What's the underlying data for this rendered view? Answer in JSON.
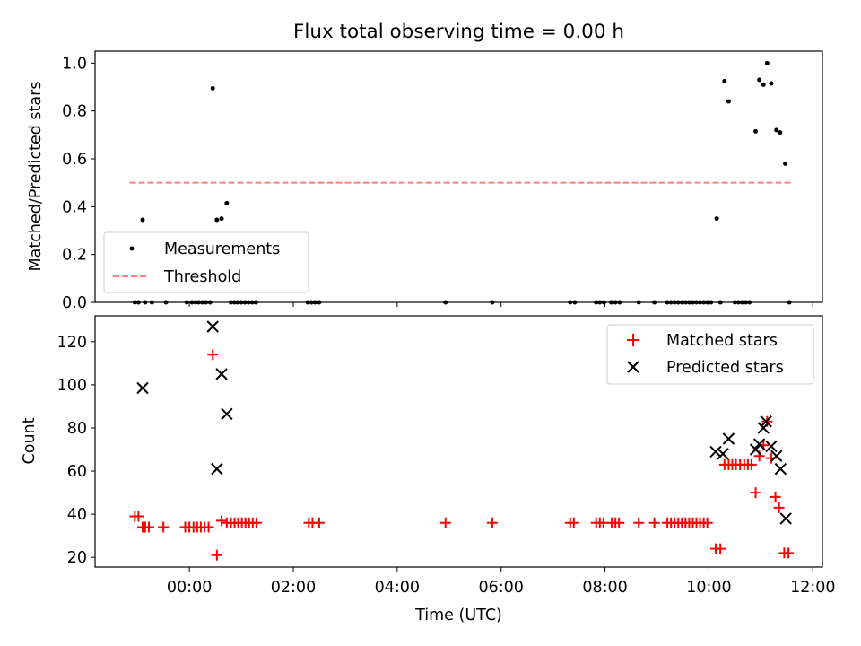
{
  "chart_data": [
    {
      "type": "scatter",
      "title": "Flux total observing time = 0.00 h",
      "ylabel": "Matched/Predicted stars",
      "ylim": [
        0,
        1.05
      ],
      "y_ticks": [
        "0.0",
        "0.2",
        "0.4",
        "0.6",
        "0.8",
        "1.0"
      ],
      "legend_position": "lower-left",
      "threshold": {
        "name": "Threshold",
        "value": 0.5,
        "x_range": [
          -1.15,
          11.62
        ],
        "color": "#ff7f7f",
        "style": "dashed"
      },
      "series": [
        {
          "name": "Measurements",
          "color": "#000000",
          "points": [
            [
              -1.05,
              0
            ],
            [
              -0.98,
              0
            ],
            [
              -0.9,
              0.345
            ],
            [
              -0.85,
              0
            ],
            [
              -0.72,
              0
            ],
            [
              -0.45,
              0
            ],
            [
              -0.05,
              0
            ],
            [
              0.05,
              0
            ],
            [
              0.12,
              0
            ],
            [
              0.18,
              0
            ],
            [
              0.25,
              0
            ],
            [
              0.32,
              0
            ],
            [
              0.4,
              0
            ],
            [
              0.45,
              0.895
            ],
            [
              0.53,
              0.345
            ],
            [
              0.62,
              0.35
            ],
            [
              0.72,
              0.415
            ],
            [
              0.8,
              0
            ],
            [
              0.87,
              0
            ],
            [
              0.93,
              0
            ],
            [
              1.0,
              0
            ],
            [
              1.07,
              0
            ],
            [
              1.14,
              0
            ],
            [
              1.21,
              0
            ],
            [
              1.28,
              0
            ],
            [
              2.28,
              0
            ],
            [
              2.35,
              0
            ],
            [
              2.42,
              0
            ],
            [
              2.5,
              0
            ],
            [
              4.93,
              0
            ],
            [
              5.83,
              0
            ],
            [
              7.33,
              0
            ],
            [
              7.42,
              0
            ],
            [
              7.83,
              0
            ],
            [
              7.9,
              0
            ],
            [
              7.98,
              0
            ],
            [
              8.12,
              0
            ],
            [
              8.2,
              0
            ],
            [
              8.28,
              0
            ],
            [
              8.65,
              0
            ],
            [
              8.95,
              0
            ],
            [
              9.2,
              0
            ],
            [
              9.27,
              0
            ],
            [
              9.34,
              0
            ],
            [
              9.41,
              0
            ],
            [
              9.48,
              0
            ],
            [
              9.55,
              0
            ],
            [
              9.62,
              0
            ],
            [
              9.69,
              0
            ],
            [
              9.76,
              0
            ],
            [
              9.83,
              0
            ],
            [
              9.9,
              0
            ],
            [
              9.97,
              0
            ],
            [
              10.04,
              0
            ],
            [
              10.15,
              0.35
            ],
            [
              10.22,
              0
            ],
            [
              10.3,
              0.925
            ],
            [
              10.38,
              0.84
            ],
            [
              10.5,
              0
            ],
            [
              10.57,
              0
            ],
            [
              10.64,
              0
            ],
            [
              10.71,
              0
            ],
            [
              10.78,
              0
            ],
            [
              10.9,
              0.715
            ],
            [
              10.97,
              0.93
            ],
            [
              11.05,
              0.91
            ],
            [
              11.12,
              1.0
            ],
            [
              11.2,
              0.915
            ],
            [
              11.3,
              0.72
            ],
            [
              11.37,
              0.71
            ],
            [
              11.47,
              0.58
            ],
            [
              11.55,
              0
            ]
          ]
        }
      ]
    },
    {
      "type": "scatter",
      "xlabel": "Time (UTC)",
      "ylabel": "Count",
      "x_unit": "hours (UTC)",
      "x_ticks": [
        "00:00",
        "02:00",
        "04:00",
        "06:00",
        "08:00",
        "10:00",
        "12:00"
      ],
      "y_ticks": [
        "20",
        "40",
        "60",
        "80",
        "100",
        "120"
      ],
      "ylim": [
        15.5,
        132
      ],
      "legend_position": "top-right",
      "series": [
        {
          "name": "Matched stars",
          "color": "#ff0000",
          "marker": "plus",
          "points": [
            [
              -1.05,
              39
            ],
            [
              -0.98,
              39
            ],
            [
              -0.9,
              34
            ],
            [
              -0.85,
              34
            ],
            [
              -0.78,
              34
            ],
            [
              -0.5,
              34
            ],
            [
              -0.08,
              34
            ],
            [
              0.0,
              34
            ],
            [
              0.08,
              34
            ],
            [
              0.15,
              34
            ],
            [
              0.22,
              34
            ],
            [
              0.29,
              34
            ],
            [
              0.37,
              34
            ],
            [
              0.45,
              114
            ],
            [
              0.53,
              21
            ],
            [
              0.62,
              37
            ],
            [
              0.72,
              36
            ],
            [
              0.8,
              36
            ],
            [
              0.87,
              36
            ],
            [
              0.94,
              36
            ],
            [
              1.01,
              36
            ],
            [
              1.08,
              36
            ],
            [
              1.15,
              36
            ],
            [
              1.22,
              36
            ],
            [
              1.29,
              36
            ],
            [
              2.3,
              36
            ],
            [
              2.37,
              36
            ],
            [
              2.5,
              36
            ],
            [
              4.93,
              36
            ],
            [
              5.83,
              36
            ],
            [
              7.33,
              36
            ],
            [
              7.4,
              36
            ],
            [
              7.83,
              36
            ],
            [
              7.9,
              36
            ],
            [
              7.97,
              36
            ],
            [
              8.13,
              36
            ],
            [
              8.2,
              36
            ],
            [
              8.27,
              36
            ],
            [
              8.65,
              36
            ],
            [
              8.95,
              36
            ],
            [
              9.2,
              36
            ],
            [
              9.27,
              36
            ],
            [
              9.34,
              36
            ],
            [
              9.41,
              36
            ],
            [
              9.48,
              36
            ],
            [
              9.55,
              36
            ],
            [
              9.62,
              36
            ],
            [
              9.69,
              36
            ],
            [
              9.76,
              36
            ],
            [
              9.83,
              36
            ],
            [
              9.9,
              36
            ],
            [
              9.97,
              36
            ],
            [
              10.13,
              24
            ],
            [
              10.22,
              24
            ],
            [
              10.3,
              63
            ],
            [
              10.38,
              63
            ],
            [
              10.45,
              63
            ],
            [
              10.52,
              63
            ],
            [
              10.6,
              63
            ],
            [
              10.68,
              63
            ],
            [
              10.75,
              63
            ],
            [
              10.82,
              63
            ],
            [
              10.9,
              50
            ],
            [
              10.97,
              67
            ],
            [
              11.05,
              72
            ],
            [
              11.12,
              83
            ],
            [
              11.2,
              66
            ],
            [
              11.28,
              48
            ],
            [
              11.35,
              43
            ],
            [
              11.45,
              22
            ],
            [
              11.53,
              22
            ]
          ]
        },
        {
          "name": "Predicted stars",
          "color": "#000000",
          "marker": "x",
          "points": [
            [
              -0.9,
              98.5
            ],
            [
              0.45,
              127
            ],
            [
              0.53,
              61
            ],
            [
              0.62,
              105
            ],
            [
              0.72,
              86.5
            ],
            [
              10.13,
              69
            ],
            [
              10.27,
              68
            ],
            [
              10.38,
              75
            ],
            [
              10.9,
              70
            ],
            [
              10.97,
              72.5
            ],
            [
              11.05,
              80
            ],
            [
              11.1,
              83
            ],
            [
              11.2,
              71.5
            ],
            [
              11.3,
              67
            ],
            [
              11.38,
              61
            ],
            [
              11.48,
              38
            ]
          ]
        }
      ]
    }
  ]
}
